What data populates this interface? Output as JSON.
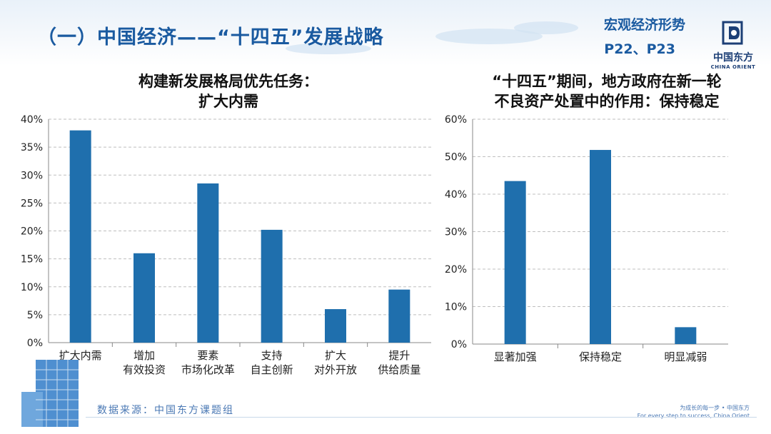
{
  "header": {
    "title": "（一）中国经济——“十四五”发展战略",
    "section": "宏观经济形势",
    "pages": "P22、P23"
  },
  "logo": {
    "cn": "中国东方",
    "en": "CHINA ORIENT"
  },
  "colors": {
    "bar": "#1f6fad",
    "title": "#1a5aa0",
    "grid": "#bfbfbf"
  },
  "chart_data": [
    {
      "type": "bar",
      "title_lines": [
        "构建新发展格局优先任务：",
        "扩大内需"
      ],
      "categories": [
        [
          "扩大内需"
        ],
        [
          "增加",
          "有效投资"
        ],
        [
          "要素",
          "市场化改革"
        ],
        [
          "支持",
          "自主创新"
        ],
        [
          "扩大",
          "对外开放"
        ],
        [
          "提升",
          "供给质量"
        ]
      ],
      "values": [
        0.38,
        0.16,
        0.285,
        0.202,
        0.06,
        0.095
      ],
      "ylim": [
        0,
        0.4
      ],
      "yticks": [
        "0%",
        "5%",
        "10%",
        "15%",
        "20%",
        "25%",
        "30%",
        "35%",
        "40%"
      ],
      "grid": true
    },
    {
      "type": "bar",
      "title_lines": [
        "“十四五”期间，地方政府在新一轮",
        "不良资产处置中的作用：保持稳定"
      ],
      "categories": [
        [
          "显著加强"
        ],
        [
          "保持稳定"
        ],
        [
          "明显减弱"
        ]
      ],
      "values": [
        0.435,
        0.518,
        0.045
      ],
      "ylim": [
        0,
        0.6
      ],
      "yticks": [
        "0%",
        "10%",
        "20%",
        "30%",
        "40%",
        "50%",
        "60%"
      ],
      "grid": true
    }
  ],
  "footer": {
    "source": "数据来源：中国东方课题组",
    "slogan_cn": "为成长的每一步 • 中国东方",
    "slogan_en": "For every step to success, China Orient"
  }
}
